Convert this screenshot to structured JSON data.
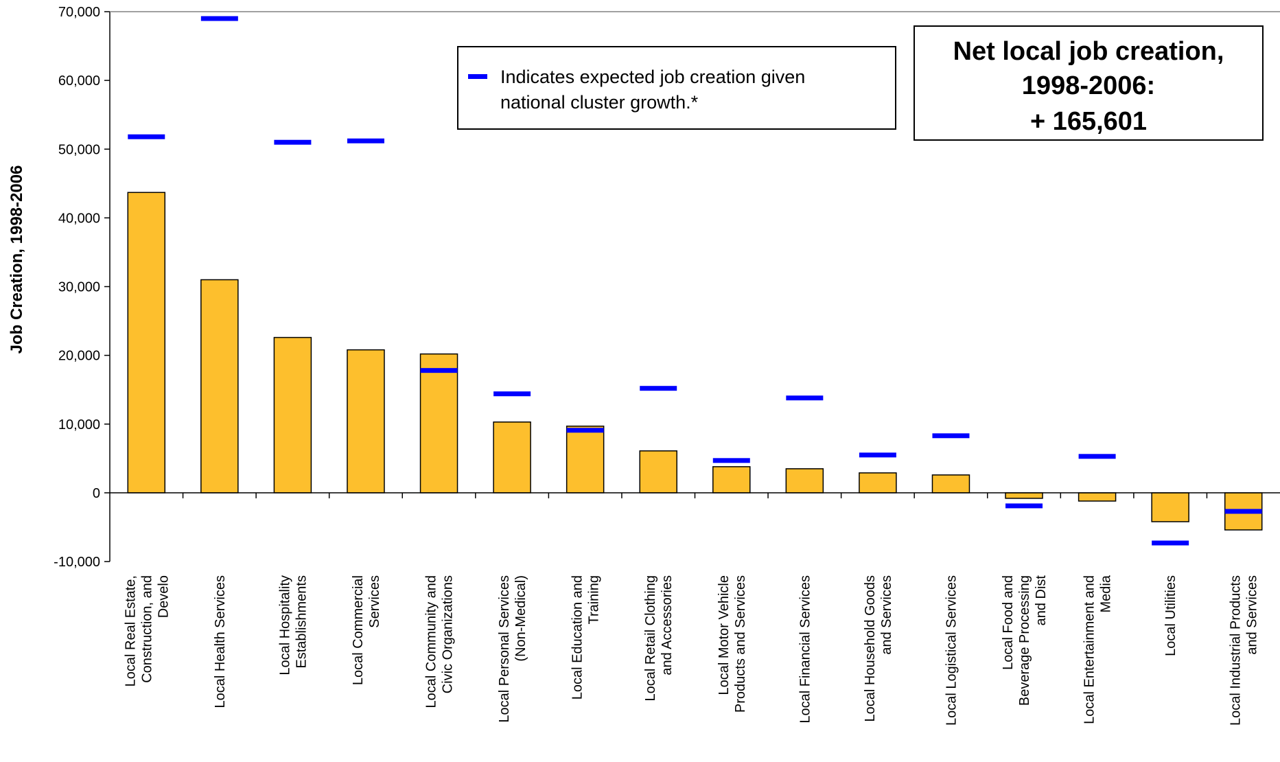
{
  "chart_data": {
    "type": "bar",
    "ylabel": "Job Creation, 1998-2006",
    "xlabel": "",
    "ylim": [
      -10000,
      70000
    ],
    "yticks": [
      -10000,
      0,
      10000,
      20000,
      30000,
      40000,
      50000,
      60000,
      70000
    ],
    "ytick_labels": [
      "-10,000",
      "0",
      "10,000",
      "20,000",
      "30,000",
      "40,000",
      "50,000",
      "60,000",
      "70,000"
    ],
    "grid": false,
    "categories": [
      [
        "Local Real Estate,",
        "Construction, and",
        "Develo"
      ],
      [
        "Local Health Services"
      ],
      [
        "Local Hospitality",
        "Establishments"
      ],
      [
        "Local Commercial",
        "Services"
      ],
      [
        "Local Community and",
        "Civic Organizations"
      ],
      [
        "Local Personal Services",
        "(Non-Medical)"
      ],
      [
        "Local Education and",
        "Training"
      ],
      [
        "Local Retail Clothing",
        "and Accessories"
      ],
      [
        "Local Motor Vehicle",
        "Products and Services"
      ],
      [
        "Local Financial Services"
      ],
      [
        "Local Household Goods",
        "and Services"
      ],
      [
        "Local Logistical Services"
      ],
      [
        "Local Food and",
        "Beverage Processing",
        "and Dist"
      ],
      [
        "Local Entertainment and",
        "Media"
      ],
      [
        "Local Utilities"
      ],
      [
        "Local Industrial Products",
        "and Services"
      ]
    ],
    "series": [
      {
        "type": "bar",
        "color": "#FDBF2D",
        "values": [
          43700,
          31000,
          22600,
          20800,
          20200,
          10300,
          9700,
          6100,
          3800,
          3500,
          2900,
          2600,
          -800,
          -1200,
          -4200,
          -5400
        ]
      },
      {
        "name": "Indicates expected job creation given national cluster growth.*",
        "type": "marker",
        "color": "#0000FF",
        "values": [
          51800,
          69000,
          51000,
          51200,
          17800,
          14400,
          9100,
          15200,
          4700,
          13800,
          5500,
          8300,
          -1900,
          5300,
          -7300,
          -2700
        ]
      }
    ],
    "legend": {
      "placement": "top-center",
      "lines": [
        "Indicates expected job creation given",
        "national cluster growth.*"
      ]
    },
    "annotation": {
      "placement": "top-right",
      "lines": [
        "Net local job creation,",
        "1998-2006:",
        "+ 165,601"
      ]
    }
  }
}
